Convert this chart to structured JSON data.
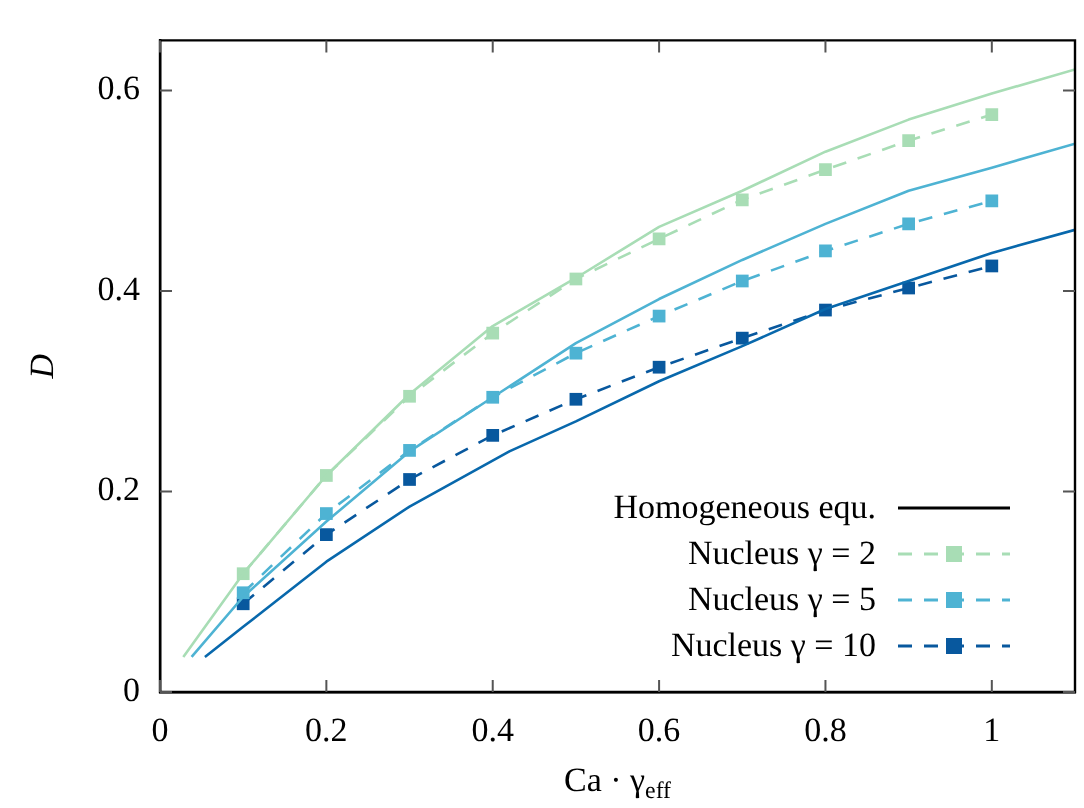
{
  "chart_data": {
    "type": "line",
    "xlabel": "Ca · γ$_{eff}$",
    "ylabel": "D",
    "xlim": [
      0,
      1.1
    ],
    "ylim": [
      0,
      0.65
    ],
    "xticks": [
      0,
      0.2,
      0.4,
      0.6,
      0.8,
      1
    ],
    "yticks": [
      0,
      0.2,
      0.4,
      0.6
    ],
    "legend": "bottom right",
    "series": [
      {
        "color": "#a8ddb5",
        "line_style": "solid",
        "marker": "none",
        "x": [
          0.028,
          0.1,
          0.2,
          0.3,
          0.4,
          0.5,
          0.6,
          0.7,
          0.8,
          0.9,
          1.0,
          1.1
        ],
        "values": [
          0.035,
          0.118,
          0.216,
          0.297,
          0.365,
          0.413,
          0.464,
          0.5,
          0.539,
          0.571,
          0.597,
          0.621
        ]
      },
      {
        "color": "#4eb3d3",
        "line_style": "solid",
        "marker": "none",
        "x": [
          0.038,
          0.1,
          0.2,
          0.3,
          0.4,
          0.5,
          0.6,
          0.7,
          0.8,
          0.9,
          1.0,
          1.1
        ],
        "values": [
          0.035,
          0.095,
          0.17,
          0.24,
          0.294,
          0.348,
          0.392,
          0.431,
          0.467,
          0.5,
          0.523,
          0.547
        ]
      },
      {
        "color": "#0868ac",
        "line_style": "solid",
        "marker": "none",
        "x": [
          0.054,
          0.1,
          0.2,
          0.3,
          0.42,
          0.5,
          0.6,
          0.7,
          0.8,
          0.9,
          1.0,
          1.1
        ],
        "values": [
          0.035,
          0.065,
          0.13,
          0.185,
          0.24,
          0.27,
          0.31,
          0.345,
          0.382,
          0.41,
          0.438,
          0.461
        ]
      },
      {
        "name": "Homogeneous equ.",
        "color": "#000000",
        "line_style": "solid",
        "marker": "none"
      },
      {
        "name": "Nucleus γ = 2",
        "color": "#a8ddb5",
        "line_style": "dashed",
        "marker": "square",
        "x": [
          0.1,
          0.2,
          0.3,
          0.4,
          0.5,
          0.6,
          0.7,
          0.8,
          0.9,
          1.0
        ],
        "values": [
          0.118,
          0.216,
          0.295,
          0.358,
          0.412,
          0.452,
          0.491,
          0.521,
          0.55,
          0.576
        ]
      },
      {
        "name": "Nucleus γ = 5",
        "color": "#4eb3d3",
        "line_style": "dashed",
        "marker": "square",
        "x": [
          0.1,
          0.2,
          0.3,
          0.4,
          0.5,
          0.6,
          0.7,
          0.8,
          0.9,
          1.0
        ],
        "values": [
          0.099,
          0.178,
          0.241,
          0.294,
          0.338,
          0.375,
          0.41,
          0.44,
          0.467,
          0.49
        ]
      },
      {
        "name": "Nucleus γ = 10",
        "color": "#08589e",
        "line_style": "dashed",
        "marker": "square",
        "x": [
          0.1,
          0.2,
          0.3,
          0.4,
          0.5,
          0.6,
          0.7,
          0.8,
          0.9,
          1.0
        ],
        "values": [
          0.088,
          0.157,
          0.212,
          0.256,
          0.292,
          0.324,
          0.353,
          0.381,
          0.403,
          0.425
        ]
      }
    ]
  }
}
